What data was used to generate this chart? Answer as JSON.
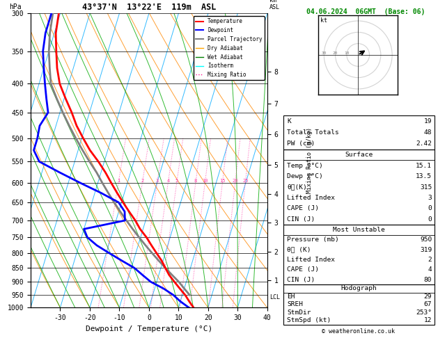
{
  "title_left": "43°37'N  13°22'E  119m  ASL",
  "title_right": "04.06.2024  06GMT  (Base: 06)",
  "xlabel": "Dewpoint / Temperature (°C)",
  "ylabel_left": "hPa",
  "pressure_levels": [
    300,
    350,
    400,
    450,
    500,
    550,
    600,
    650,
    700,
    750,
    800,
    850,
    900,
    950,
    1000
  ],
  "temp_ticks": [
    -30,
    -20,
    -10,
    0,
    10,
    20,
    30,
    40
  ],
  "km_ticks": [
    1,
    2,
    3,
    4,
    5,
    6,
    7,
    8
  ],
  "km_pressures": [
    895,
    795,
    707,
    628,
    557,
    492,
    434,
    381
  ],
  "mixing_ratios": [
    1,
    2,
    3,
    4,
    5,
    8,
    10,
    15,
    20,
    25
  ],
  "temperature_profile": {
    "pressure": [
      1000,
      975,
      950,
      925,
      900,
      875,
      850,
      825,
      800,
      775,
      750,
      725,
      700,
      675,
      650,
      625,
      600,
      575,
      550,
      525,
      500,
      475,
      450,
      425,
      400,
      375,
      350,
      325,
      300
    ],
    "temp": [
      15.1,
      13.0,
      11.0,
      8.5,
      6.0,
      3.5,
      1.5,
      -0.5,
      -3.0,
      -5.5,
      -8.0,
      -11.0,
      -13.5,
      -16.5,
      -19.5,
      -22.5,
      -25.5,
      -28.5,
      -32.0,
      -36.0,
      -39.5,
      -43.0,
      -46.0,
      -49.5,
      -53.0,
      -55.5,
      -57.5,
      -59.5,
      -60.5
    ]
  },
  "dewpoint_profile": {
    "pressure": [
      1000,
      975,
      950,
      925,
      900,
      875,
      850,
      825,
      800,
      775,
      750,
      725,
      700,
      675,
      650,
      625,
      600,
      575,
      550,
      525,
      500,
      475,
      450,
      425,
      400,
      375,
      350,
      325,
      300
    ],
    "dewp": [
      13.5,
      10.0,
      7.0,
      3.0,
      -2.0,
      -5.5,
      -9.0,
      -14.0,
      -19.0,
      -24.0,
      -28.0,
      -30.0,
      -17.0,
      -18.0,
      -21.0,
      -28.0,
      -36.0,
      -44.0,
      -52.0,
      -55.0,
      -55.0,
      -55.5,
      -54.0,
      -56.0,
      -58.0,
      -60.0,
      -62.0,
      -63.0,
      -63.0
    ]
  },
  "parcel_profile": {
    "pressure": [
      950,
      925,
      900,
      875,
      850,
      825,
      800,
      775,
      750,
      725,
      700,
      675,
      650,
      625,
      600,
      575,
      550,
      525,
      500,
      475,
      450,
      425,
      400,
      375,
      350,
      325,
      300
    ],
    "temp": [
      12.5,
      10.0,
      7.5,
      4.5,
      1.5,
      -1.5,
      -4.5,
      -7.5,
      -10.5,
      -13.5,
      -16.5,
      -19.5,
      -22.5,
      -25.5,
      -28.5,
      -31.5,
      -35.0,
      -38.5,
      -42.0,
      -45.5,
      -49.0,
      -52.5,
      -56.0,
      -58.0,
      -60.0,
      -61.5,
      -62.5
    ]
  },
  "lcl_pressure": 960,
  "colors": {
    "temperature": "#ff0000",
    "dewpoint": "#0000ff",
    "parcel": "#808080",
    "dry_adiabat": "#ff8800",
    "wet_adiabat": "#00aa00",
    "isotherm": "#00aaff",
    "mixing_ratio": "#ff44aa"
  },
  "indices": {
    "K": 19,
    "Totals_Totals": 48,
    "PW_cm": 2.42,
    "Surface_Temp": 15.1,
    "Surface_Dewp": 13.5,
    "Surface_theta_e": 315,
    "Surface_LI": 3,
    "Surface_CAPE": 0,
    "Surface_CIN": 0,
    "MU_Pressure": 950,
    "MU_theta_e": 319,
    "MU_LI": 2,
    "MU_CAPE": 4,
    "MU_CIN": 80,
    "EH": 29,
    "SREH": 67,
    "StmDir": 253,
    "StmSpd": 12
  },
  "hodograph": {
    "circles": [
      10,
      20,
      30
    ],
    "arrow_u": 8,
    "arrow_v": 5
  }
}
